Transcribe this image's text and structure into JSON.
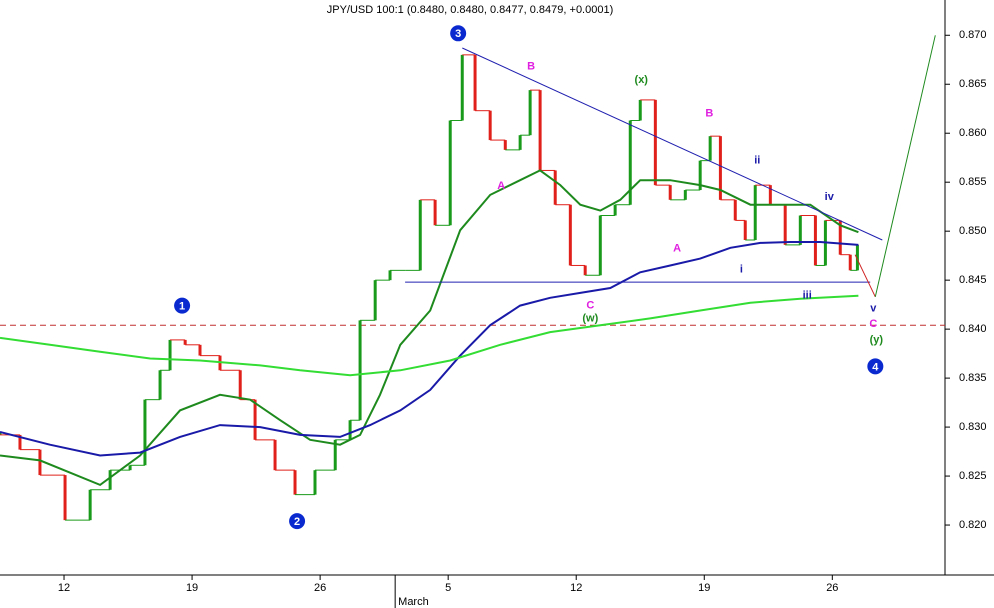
{
  "chart_data": {
    "type": "price",
    "title": "JPY/USD 100:1 (0.8480, 0.8480, 0.8477, 0.8479, +0.0001)",
    "xlim": [
      7.5,
      44.4
    ],
    "ylim": [
      0.8149,
      0.8736
    ],
    "xticks": [
      {
        "value": 10,
        "label": "12"
      },
      {
        "value": 15,
        "label": "19"
      },
      {
        "value": 20,
        "label": "26"
      },
      {
        "value": 25,
        "label": "5"
      },
      {
        "value": 30,
        "label": "12"
      },
      {
        "value": 35,
        "label": "19"
      },
      {
        "value": 40,
        "label": "26"
      }
    ],
    "month_ticks": [
      {
        "value": 22.93,
        "label": "March"
      }
    ],
    "yticks": [
      {
        "value": 0.82,
        "label": "0.820"
      },
      0.825,
      {
        "value": 0.83,
        "label": "0.830"
      },
      0.835,
      {
        "value": 0.84,
        "label": "0.840"
      },
      0.845,
      {
        "value": 0.85,
        "label": "0.850"
      },
      0.855,
      {
        "value": 0.86,
        "label": "0.860"
      },
      0.865,
      {
        "value": 0.87,
        "label": "0.870"
      }
    ],
    "up_color": "#1a9a1a",
    "down_color": "#e0201a",
    "x": [
      7.5,
      8.28,
      9.06,
      10.04,
      11.02,
      11.8,
      12.58,
      13.16,
      13.75,
      14.14,
      14.73,
      15.31,
      16.09,
      16.88,
      17.46,
      18.24,
      19.02,
      19.8,
      20.59,
      21.17,
      21.56,
      22.15,
      22.73,
      23.32,
      23.91,
      24.49,
      25.08,
      25.55,
      26.05,
      26.64,
      27.23,
      27.81,
      28.2,
      28.59,
      29.18,
      29.77,
      30.35,
      30.94,
      31.52,
      32.11,
      32.5,
      33.09,
      33.67,
      34.26,
      34.84,
      35.23,
      35.63,
      36.21,
      36.6,
      36.99,
      37.58,
      38.16,
      38.75,
      39.34,
      39.73,
      40.31,
      40.7,
      40.98
    ],
    "values": [
      0.8292,
      0.8277,
      0.8251,
      0.8205,
      0.8236,
      0.8256,
      0.8261,
      0.8328,
      0.8358,
      0.8389,
      0.8384,
      0.8373,
      0.8358,
      0.8328,
      0.8287,
      0.8256,
      0.8231,
      0.8256,
      0.8287,
      0.8307,
      0.8409,
      0.845,
      0.846,
      0.846,
      0.8532,
      0.8506,
      0.8613,
      0.868,
      0.8623,
      0.8593,
      0.8583,
      0.8598,
      0.8644,
      0.8562,
      0.8527,
      0.8465,
      0.8455,
      0.8516,
      0.8527,
      0.8613,
      0.8634,
      0.8547,
      0.8532,
      0.8542,
      0.8572,
      0.8597,
      0.8532,
      0.8511,
      0.8491,
      0.8547,
      0.8527,
      0.8486,
      0.8516,
      0.8465,
      0.8511,
      0.8476,
      0.846,
      0.8486
    ],
    "series": [
      {
        "color": "#1e8a1e",
        "x": [
          7.5,
          9.06,
          11.41,
          12.97,
          14.53,
          16.09,
          17.27,
          18.44,
          19.61,
          20.78,
          21.56,
          22.34,
          23.13,
          24.3,
          25.47,
          26.64,
          27.81,
          28.59,
          29.38,
          30.16,
          30.94,
          31.72,
          32.5,
          33.67,
          34.84,
          35.63,
          36.8,
          37.97,
          39.14,
          40.31,
          41.02
        ],
        "values": [
          0.8271,
          0.8266,
          0.8241,
          0.8271,
          0.8317,
          0.8333,
          0.8328,
          0.8307,
          0.8287,
          0.8282,
          0.8292,
          0.8333,
          0.8384,
          0.8419,
          0.8501,
          0.8537,
          0.8552,
          0.8562,
          0.8547,
          0.8527,
          0.8521,
          0.8532,
          0.8552,
          0.8552,
          0.8547,
          0.8542,
          0.8527,
          0.8527,
          0.8527,
          0.8506,
          0.8499
        ]
      },
      {
        "color": "#1a1aa8",
        "x": [
          7.5,
          9.45,
          11.41,
          12.97,
          14.53,
          16.09,
          17.66,
          19.22,
          20.78,
          21.95,
          23.13,
          24.3,
          25.47,
          26.64,
          27.81,
          28.98,
          30.16,
          31.33,
          32.5,
          33.67,
          34.84,
          36.02,
          37.19,
          38.36,
          39.53,
          41.02
        ],
        "values": [
          0.8295,
          0.8282,
          0.8271,
          0.8274,
          0.829,
          0.8302,
          0.83,
          0.8292,
          0.829,
          0.8302,
          0.8317,
          0.8338,
          0.8373,
          0.8404,
          0.8424,
          0.8432,
          0.8437,
          0.8442,
          0.8458,
          0.8465,
          0.8472,
          0.8483,
          0.8488,
          0.8489,
          0.8489,
          0.8486
        ]
      },
      {
        "color": "#33dd33",
        "x": [
          7.5,
          9.45,
          11.41,
          13.36,
          15.31,
          17.66,
          19.22,
          21.17,
          23.13,
          25.08,
          27.03,
          28.98,
          30.94,
          32.89,
          34.84,
          36.8,
          38.75,
          41.02
        ],
        "values": [
          0.8391,
          0.8384,
          0.8377,
          0.837,
          0.8368,
          0.8363,
          0.8358,
          0.8353,
          0.8358,
          0.8368,
          0.8384,
          0.8397,
          0.8404,
          0.8411,
          0.8419,
          0.8427,
          0.8431,
          0.8434
        ]
      },
      {
        "color": "#2020b0",
        "x": [
          25.55,
          41.95
        ],
        "values": [
          0.8687,
          0.8491
        ]
      },
      {
        "color": "#2020b0",
        "x": [
          23.32,
          41.48
        ],
        "values": [
          0.8448,
          0.8448
        ]
      },
      {
        "color": "#d02020",
        "x": [
          40.89,
          41.68
        ],
        "values": [
          0.8476,
          0.8433
        ]
      },
      {
        "color": "#1e8a1e",
        "x": [
          41.68,
          44.02
        ],
        "values": [
          0.8433,
          0.87
        ]
      }
    ],
    "hline": {
      "value": 0.8404,
      "color": "#c03030"
    },
    "wave_marks": [
      {
        "text": "1",
        "x": 14.61,
        "y": 0.8424
      },
      {
        "text": "2",
        "x": 19.1,
        "y": 0.8204
      },
      {
        "text": "3",
        "x": 25.39,
        "y": 0.8702
      },
      {
        "text": "4",
        "x": 41.68,
        "y": 0.8362
      }
    ],
    "wave_color": "#0a2ad0",
    "annotations": [
      {
        "text": "B",
        "x": 28.24,
        "y": 0.8668,
        "color": "#e020e0"
      },
      {
        "text": "(x)",
        "x": 32.54,
        "y": 0.8654,
        "color": "#1e8a1e"
      },
      {
        "text": "B",
        "x": 35.2,
        "y": 0.862,
        "color": "#e020e0"
      },
      {
        "text": "ii",
        "x": 37.07,
        "y": 0.8572,
        "color": "#1a1aa8"
      },
      {
        "text": "iv",
        "x": 39.88,
        "y": 0.8535,
        "color": "#1a1aa8"
      },
      {
        "text": "A",
        "x": 27.07,
        "y": 0.8546,
        "color": "#e020e0"
      },
      {
        "text": "A",
        "x": 33.94,
        "y": 0.8482,
        "color": "#e020e0"
      },
      {
        "text": "i",
        "x": 36.45,
        "y": 0.8461,
        "color": "#1a1aa8"
      },
      {
        "text": "C",
        "x": 30.55,
        "y": 0.8424,
        "color": "#e020e0"
      },
      {
        "text": "(w)",
        "x": 30.55,
        "y": 0.8411,
        "color": "#1e8a1e"
      },
      {
        "text": "iii",
        "x": 39.02,
        "y": 0.8434,
        "color": "#1a1aa8"
      },
      {
        "text": "v",
        "x": 41.6,
        "y": 0.8421,
        "color": "#1a1aa8"
      },
      {
        "text": "C",
        "x": 41.6,
        "y": 0.8405,
        "color": "#e020e0"
      },
      {
        "text": "(y)",
        "x": 41.72,
        "y": 0.8389,
        "color": "#1e8a1e"
      }
    ]
  }
}
